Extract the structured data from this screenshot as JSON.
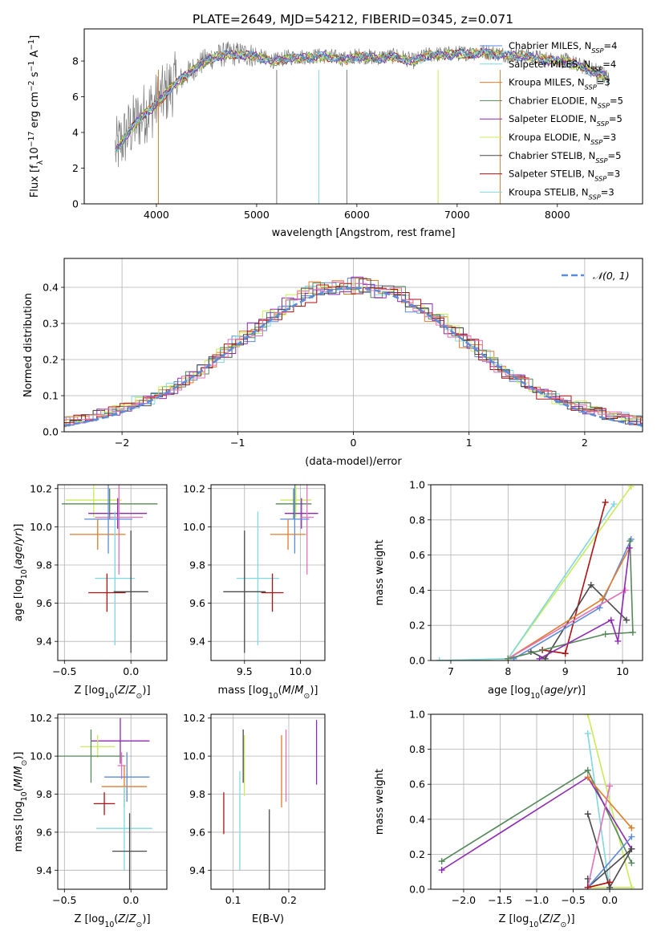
{
  "title": "PLATE=2649, MJD=54212, FIBERID=0345, z=0.071",
  "colors": {
    "blue": "#5b8bd9",
    "cyan": "#7fd8e0",
    "orange": "#e07b2a",
    "green": "#55885a",
    "purple": "#8e2ab0",
    "lime": "#c8ec58",
    "dark": "#4a4a4a",
    "red": "#b01010",
    "pink": "#e070b8"
  },
  "chart_data": [
    {
      "id": "spectrum",
      "type": "line",
      "xlabel": "wavelength [Angstrom, rest frame]",
      "ylabel": "Flux [f_λ10^-17 erg cm^-2 s^-1 A^-1]",
      "xlim": [
        3280,
        8850
      ],
      "ylim": [
        0,
        9.8
      ],
      "xticks": [
        4000,
        5000,
        6000,
        7000,
        8000
      ],
      "yticks": [
        0,
        2,
        4,
        6,
        8
      ],
      "grid": false,
      "legend_position": "top-right",
      "data_envelope": {
        "x": [
          3590,
          3700,
          3800,
          3900,
          3980,
          4050,
          4150,
          4250,
          4350,
          4450,
          4550,
          4700,
          4860,
          5000,
          5175,
          5300,
          5500,
          5700,
          5890,
          6000,
          6200,
          6400,
          6563,
          6700,
          6900,
          7100,
          7300,
          7500,
          7700,
          7900,
          8100,
          8300,
          8500
        ],
        "y": [
          3.0,
          3.9,
          4.6,
          5.2,
          5.5,
          5.9,
          6.6,
          7.0,
          7.5,
          7.9,
          8.2,
          8.4,
          8.4,
          8.3,
          8.0,
          8.2,
          8.25,
          8.3,
          8.1,
          8.3,
          8.2,
          8.3,
          8.0,
          8.35,
          8.4,
          8.45,
          8.5,
          8.35,
          8.3,
          8.1,
          8.0,
          7.6,
          7.1
        ]
      },
      "series": [
        {
          "name": "Chabrier MILES, N_SSP=4",
          "color": "blue"
        },
        {
          "name": "Salpeter MILES, N_SSP=4",
          "color": "cyan"
        },
        {
          "name": "Kroupa MILES, N_SSP=3",
          "color": "orange"
        },
        {
          "name": "Chabrier ELODIE, N_SSP=5",
          "color": "green"
        },
        {
          "name": "Salpeter ELODIE, N_SSP=5",
          "color": "purple"
        },
        {
          "name": "Kroupa ELODIE, N_SSP=3",
          "color": "lime"
        },
        {
          "name": "Chabrier STELIB, N_SSP=5",
          "color": "dark"
        },
        {
          "name": "Salpeter STELIB, N_SSP=3",
          "color": "red"
        },
        {
          "name": "Kroupa STELIB, N_SSP=3",
          "color": "cyan"
        }
      ]
    },
    {
      "id": "residuals",
      "type": "line",
      "xlabel": "(data-model)/error",
      "ylabel": "Normed distribution",
      "xlim": [
        -2.5,
        2.5
      ],
      "ylim": [
        0,
        0.48
      ],
      "xticks": [
        -2,
        -1,
        0,
        1,
        2
      ],
      "yticks": [
        0.0,
        0.1,
        0.2,
        0.3,
        0.4
      ],
      "grid": true,
      "legend_position": "top-right",
      "reference": {
        "name": "𝒩(0, 1)",
        "color": "blue",
        "mean": 0,
        "sigma": 1
      },
      "hist_bin_width": 0.1,
      "hist_colors": [
        "blue",
        "cyan",
        "orange",
        "green",
        "purple",
        "lime",
        "dark",
        "red",
        "pink"
      ]
    },
    {
      "id": "age_vs_Z",
      "type": "scatter",
      "xlabel": "Z [log10(Z/Z⊙)]",
      "ylabel": "age [log10(age/yr)]",
      "xlim": [
        -0.55,
        0.27
      ],
      "ylim": [
        9.3,
        10.22
      ],
      "xticks": [
        -0.5,
        0.0
      ],
      "yticks": [
        9.4,
        9.6,
        9.8,
        10.0,
        10.2
      ],
      "grid": true,
      "points": [
        {
          "c": "lime",
          "x": -0.28,
          "xe": 0.21,
          "y": 10.14,
          "ye": 0.09
        },
        {
          "c": "green",
          "x": -0.16,
          "xe": 0.36,
          "y": 10.12,
          "ye": 0.08
        },
        {
          "c": "purple",
          "x": -0.1,
          "xe": 0.22,
          "y": 10.07,
          "ye": 0.08
        },
        {
          "c": "pink",
          "x": -0.09,
          "xe": 0.18,
          "y": 10.05,
          "ye": 0.3
        },
        {
          "c": "blue",
          "x": -0.17,
          "xe": 0.18,
          "y": 10.04,
          "ye": 0.18
        },
        {
          "c": "orange",
          "x": -0.25,
          "xe": 0.21,
          "y": 9.96,
          "ye": 0.08
        },
        {
          "c": "cyan",
          "x": -0.12,
          "xe": 0.15,
          "y": 9.73,
          "ye": 0.35
        },
        {
          "c": "red",
          "x": -0.18,
          "xe": 0.14,
          "y": 9.655,
          "ye": 0.1
        },
        {
          "c": "dark",
          "x": 0.0,
          "xe": 0.13,
          "y": 9.66,
          "ye": 0.32
        }
      ]
    },
    {
      "id": "age_vs_mass",
      "type": "scatter",
      "xlabel": "mass [log10(M/M⊙)]",
      "ylabel": "",
      "xlim": [
        9.2,
        10.22
      ],
      "ylim": [
        9.3,
        10.22
      ],
      "xticks": [
        9.5,
        10.0
      ],
      "yticks": [
        9.4,
        9.6,
        9.8,
        10.0,
        10.2
      ],
      "grid": true,
      "points": [
        {
          "c": "lime",
          "x": 9.96,
          "xe": 0.14,
          "y": 10.14,
          "ye": 0.09
        },
        {
          "c": "green",
          "x": 9.94,
          "xe": 0.16,
          "y": 10.12,
          "ye": 0.08
        },
        {
          "c": "purple",
          "x": 10.01,
          "xe": 0.15,
          "y": 10.07,
          "ye": 0.08
        },
        {
          "c": "pink",
          "x": 10.06,
          "xe": 0.06,
          "y": 10.05,
          "ye": 0.3
        },
        {
          "c": "blue",
          "x": 9.95,
          "xe": 0.13,
          "y": 10.04,
          "ye": 0.18
        },
        {
          "c": "orange",
          "x": 9.89,
          "xe": 0.16,
          "y": 9.96,
          "ye": 0.08
        },
        {
          "c": "cyan",
          "x": 9.62,
          "xe": 0.19,
          "y": 9.73,
          "ye": 0.35
        },
        {
          "c": "red",
          "x": 9.75,
          "xe": 0.1,
          "y": 9.655,
          "ye": 0.1
        },
        {
          "c": "dark",
          "x": 9.5,
          "xe": 0.19,
          "y": 9.66,
          "ye": 0.32
        }
      ]
    },
    {
      "id": "massweight_vs_age",
      "type": "line",
      "xlabel": "age [log10(age/yr)]",
      "ylabel": "mass weight",
      "xlim": [
        6.65,
        10.35
      ],
      "ylim": [
        0,
        1.0
      ],
      "xticks": [
        7,
        8,
        9,
        10
      ],
      "yticks": [
        0.0,
        0.2,
        0.4,
        0.6,
        0.8,
        1.0
      ],
      "grid": true,
      "series": [
        {
          "c": "lime",
          "x": [
            6.8,
            8.0,
            10.15
          ],
          "y": [
            0.0,
            0.01,
            0.99
          ]
        },
        {
          "c": "cyan",
          "x": [
            6.8,
            8.0,
            9.85
          ],
          "y": [
            0.0,
            0.01,
            0.89
          ]
        },
        {
          "c": "red",
          "x": [
            8.6,
            9.0,
            9.7
          ],
          "y": [
            0.06,
            0.04,
            0.9
          ]
        },
        {
          "c": "dark",
          "x": [
            8.4,
            8.65,
            9.45,
            10.07
          ],
          "y": [
            0.05,
            0.01,
            0.43,
            0.23
          ]
        },
        {
          "c": "blue",
          "x": [
            8.1,
            9.6,
            10.15
          ],
          "y": [
            0.01,
            0.3,
            0.69
          ]
        },
        {
          "c": "orange",
          "x": [
            8.0,
            9.65,
            10.12
          ],
          "y": [
            0.01,
            0.35,
            0.64
          ]
        },
        {
          "c": "pink",
          "x": [
            8.0,
            10.05
          ],
          "y": [
            0.01,
            0.4
          ]
        },
        {
          "c": "green",
          "x": [
            8.0,
            9.7,
            10.18,
            10.13
          ],
          "y": [
            0.01,
            0.15,
            0.16,
            0.68
          ]
        },
        {
          "c": "purple",
          "x": [
            8.55,
            9.8,
            9.92,
            10.12
          ],
          "y": [
            0.01,
            0.23,
            0.11,
            0.64
          ]
        }
      ]
    },
    {
      "id": "mass_vs_Z",
      "type": "scatter",
      "xlabel": "Z [log10(Z/Z⊙)]",
      "ylabel": "mass [log10(M/M⊙)]",
      "xlim": [
        -0.55,
        0.27
      ],
      "ylim": [
        9.3,
        10.22
      ],
      "xticks": [
        -0.5,
        0.0
      ],
      "yticks": [
        9.4,
        9.6,
        9.8,
        10.0,
        10.2
      ],
      "grid": true,
      "points": [
        {
          "c": "purple",
          "x": -0.08,
          "xe": 0.22,
          "y": 10.08,
          "ye": 0.12
        },
        {
          "c": "lime",
          "x": -0.25,
          "xe": 0.13,
          "y": 10.05,
          "ye": 0.06
        },
        {
          "c": "green",
          "x": -0.3,
          "xe": 0.25,
          "y": 10.0,
          "ye": 0.14
        },
        {
          "c": "pink",
          "x": -0.07,
          "xe": 0.03,
          "y": 9.95,
          "ye": 0.07
        },
        {
          "c": "blue",
          "x": -0.03,
          "xe": 0.17,
          "y": 9.89,
          "ye": 0.13
        },
        {
          "c": "orange",
          "x": -0.05,
          "xe": 0.17,
          "y": 9.84,
          "ye": 0.11
        },
        {
          "c": "red",
          "x": -0.2,
          "xe": 0.08,
          "y": 9.75,
          "ye": 0.06
        },
        {
          "c": "cyan",
          "x": -0.05,
          "xe": 0.21,
          "y": 9.62,
          "ye": 0.22
        },
        {
          "c": "dark",
          "x": -0.01,
          "xe": 0.13,
          "y": 9.5,
          "ye": 0.2
        }
      ]
    },
    {
      "id": "mass_vs_ebv",
      "type": "scatter",
      "xlabel": "E(B-V)",
      "ylabel": "",
      "xlim": [
        0.06,
        0.265
      ],
      "ylim": [
        9.3,
        10.22
      ],
      "xticks": [
        0.1,
        0.2
      ],
      "yticks": [
        9.4,
        9.6,
        9.8,
        10.0,
        10.2
      ],
      "grid": true,
      "points": [
        {
          "c": "purple",
          "x": 0.25,
          "xe": 0.0,
          "y": 10.02,
          "ye": 0.17
        },
        {
          "c": "pink",
          "x": 0.195,
          "xe": 0.0,
          "y": 9.95,
          "ye": 0.19
        },
        {
          "c": "orange",
          "x": 0.187,
          "xe": 0.0,
          "y": 9.92,
          "ye": 0.19
        },
        {
          "c": "lime",
          "x": 0.12,
          "xe": 0.0,
          "y": 9.95,
          "ye": 0.16
        },
        {
          "c": "dark",
          "x": 0.118,
          "xe": 0.0,
          "y": 10.0,
          "ye": 0.14
        },
        {
          "c": "cyan",
          "x": 0.112,
          "xe": 0.0,
          "y": 9.66,
          "ye": 0.26
        },
        {
          "c": "red",
          "x": 0.083,
          "xe": 0.0,
          "y": 9.7,
          "ye": 0.11
        },
        {
          "c": "dark",
          "x": 0.165,
          "xe": 0.0,
          "y": 9.51,
          "ye": 0.21
        }
      ]
    },
    {
      "id": "massweight_vs_Z",
      "type": "line",
      "xlabel": "Z [log10(Z/Z⊙)]",
      "ylabel": "mass weight",
      "xlim": [
        -2.45,
        0.45
      ],
      "ylim": [
        0,
        1.0
      ],
      "xticks": [
        -2.0,
        -1.5,
        -1.0,
        -0.5,
        0.0
      ],
      "yticks": [
        0.0,
        0.2,
        0.4,
        0.6,
        0.8,
        1.0
      ],
      "grid": true,
      "series": [
        {
          "c": "lime",
          "x": [
            -0.3,
            0.3,
            -0.3
          ],
          "y": [
            1.0,
            0.01,
            0.01
          ]
        },
        {
          "c": "cyan",
          "x": [
            -0.3,
            0.0
          ],
          "y": [
            0.89,
            0.0
          ]
        },
        {
          "c": "green",
          "x": [
            -2.3,
            -0.3,
            0.3
          ],
          "y": [
            0.16,
            0.68,
            0.15
          ]
        },
        {
          "c": "purple",
          "x": [
            -2.3,
            -0.3,
            0.3
          ],
          "y": [
            0.11,
            0.64,
            0.23
          ]
        },
        {
          "c": "dark",
          "x": [
            -0.3,
            0.0,
            0.3,
            -0.3,
            -0.3
          ],
          "y": [
            0.43,
            0.01,
            0.23,
            0.01,
            0.06
          ]
        },
        {
          "c": "blue",
          "x": [
            -0.3,
            0.3
          ],
          "y": [
            0.01,
            0.3
          ]
        },
        {
          "c": "orange",
          "x": [
            -0.3,
            0.3
          ],
          "y": [
            0.64,
            0.35
          ]
        },
        {
          "c": "pink",
          "x": [
            -0.3,
            0.0
          ],
          "y": [
            0.01,
            0.59
          ]
        },
        {
          "c": "red",
          "x": [
            -0.3,
            0.0
          ],
          "y": [
            0.01,
            0.04
          ]
        }
      ]
    }
  ]
}
